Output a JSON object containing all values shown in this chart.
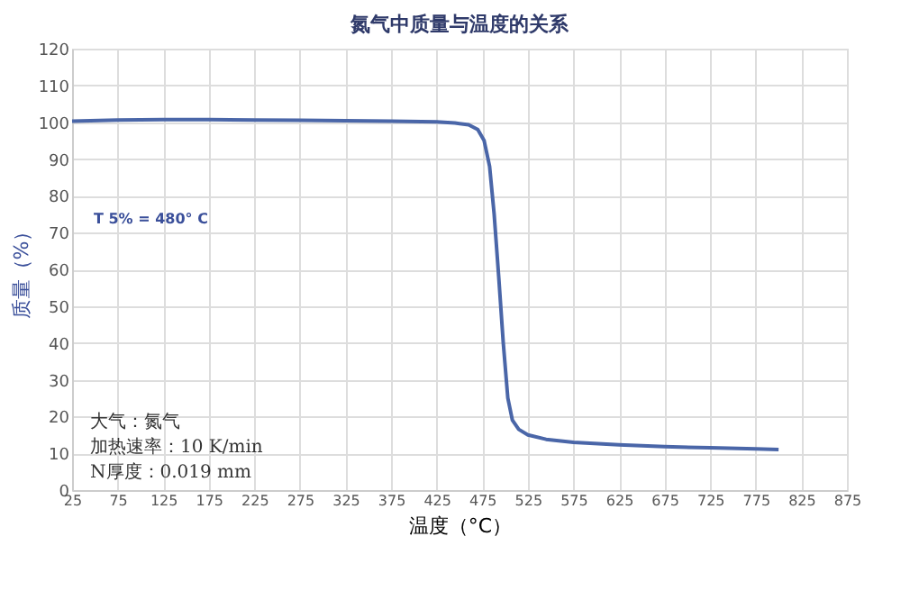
{
  "chart_data": {
    "type": "line",
    "title": "氮气中质量与温度的关系",
    "xlabel": "温度（°C）",
    "ylabel": "质量（%）",
    "x": [
      25,
      75,
      125,
      175,
      225,
      275,
      325,
      375,
      425,
      445,
      460,
      470,
      477,
      483,
      488,
      493,
      498,
      503,
      508,
      515,
      525,
      545,
      575,
      625,
      675,
      725,
      775,
      800
    ],
    "series": [
      {
        "color": "#4a66a8",
        "values": [
          100.3,
          100.6,
          100.7,
          100.7,
          100.6,
          100.5,
          100.4,
          100.3,
          100.1,
          99.8,
          99.3,
          98,
          95,
          88,
          75,
          58,
          40,
          25,
          19,
          16.5,
          15,
          13.8,
          13,
          12.3,
          11.8,
          11.5,
          11.2,
          11
        ]
      }
    ],
    "xlim": [
      25,
      875
    ],
    "xticks": [
      25,
      75,
      125,
      175,
      225,
      275,
      325,
      375,
      425,
      475,
      525,
      575,
      625,
      675,
      725,
      775,
      825,
      875
    ],
    "ylim": [
      0,
      120
    ],
    "yticks": [
      0,
      10,
      20,
      30,
      40,
      50,
      60,
      70,
      80,
      90,
      100,
      110,
      120
    ],
    "grid": true,
    "marker": "none",
    "line_style": "solid",
    "annotations": [
      "T 5% = 480° C",
      "大气：氮气",
      "加热速率：10 K/min",
      "N厚度：0.019 mm"
    ]
  }
}
